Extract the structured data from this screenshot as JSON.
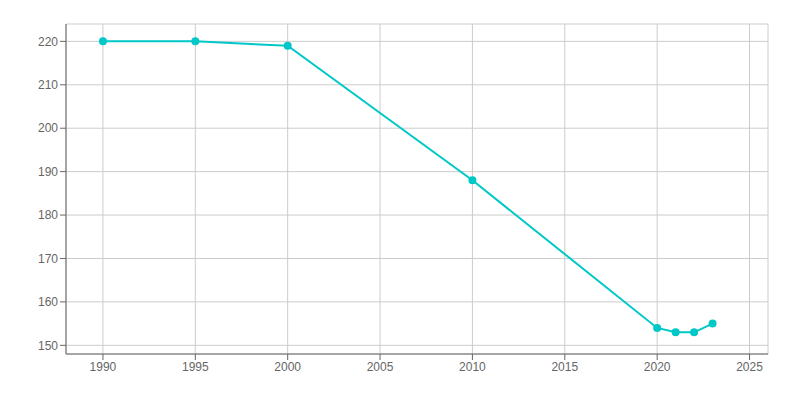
{
  "chart_data": {
    "type": "line",
    "x": [
      1990,
      1995,
      2000,
      2010,
      2020,
      2021,
      2022,
      2023
    ],
    "values": [
      220,
      220,
      219,
      188,
      154,
      153,
      153,
      155
    ],
    "color": "#00c8c8",
    "marker": "circle",
    "xlim": [
      1988,
      2026
    ],
    "ylim": [
      148,
      224
    ],
    "xticks": [
      1990,
      1995,
      2000,
      2005,
      2010,
      2015,
      2020,
      2025
    ],
    "yticks": [
      150,
      160,
      170,
      180,
      190,
      200,
      210,
      220
    ],
    "grid": true
  }
}
